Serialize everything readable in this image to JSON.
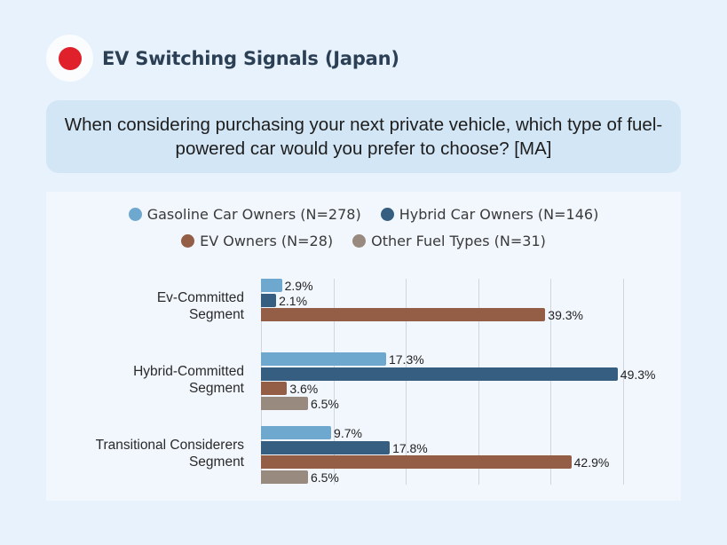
{
  "header": {
    "title": "EV Switching Signals (Japan)",
    "flag_icon": "japan-flag-icon",
    "flag_color": "#e0202a"
  },
  "question": {
    "text": "When considering purchasing your next private vehicle, which type of fuel-powered car would you prefer to choose? [MA]"
  },
  "legend": {
    "items": [
      {
        "label": "Gasoline Car Owners (N=278)",
        "color": "#6fa8cf"
      },
      {
        "label": "Hybrid Car Owners (N=146)",
        "color": "#355e80"
      },
      {
        "label": "EV Owners (N=28)",
        "color": "#935e45"
      },
      {
        "label": "Other Fuel Types (N=31)",
        "color": "#998a80"
      }
    ]
  },
  "chart_data": {
    "type": "bar",
    "orientation": "horizontal",
    "title": "EV Switching Signals (Japan)",
    "subtitle": "When considering purchasing your next private vehicle, which type of fuel-powered car would you prefer to choose? [MA]",
    "categories": [
      "Ev-Committed Segment",
      "Hybrid-Committed Segment",
      "Transitional Considerers Segment"
    ],
    "series": [
      {
        "name": "Gasoline Car Owners (N=278)",
        "color": "#6fa8cf",
        "values": [
          2.9,
          17.3,
          9.7
        ]
      },
      {
        "name": "Hybrid Car Owners (N=146)",
        "color": "#355e80",
        "values": [
          2.1,
          49.3,
          17.8
        ]
      },
      {
        "name": "EV Owners (N=28)",
        "color": "#935e45",
        "values": [
          39.3,
          3.6,
          42.9
        ]
      },
      {
        "name": "Other Fuel Types (N=31)",
        "color": "#998a80",
        "values": [
          null,
          6.5,
          6.5
        ]
      }
    ],
    "xlabel": "",
    "ylabel": "",
    "xlim": [
      0,
      50
    ],
    "grid": true,
    "gridlines_at": [
      0,
      10,
      20,
      30,
      40,
      50
    ],
    "legend_position": "top",
    "value_format": "percent_1dp"
  },
  "categories_display": [
    {
      "line1": "Ev-Committed",
      "line2": "Segment"
    },
    {
      "line1": "Hybrid-Committed",
      "line2": "Segment"
    },
    {
      "line1": "Transitional Considerers",
      "line2": "Segment"
    }
  ]
}
